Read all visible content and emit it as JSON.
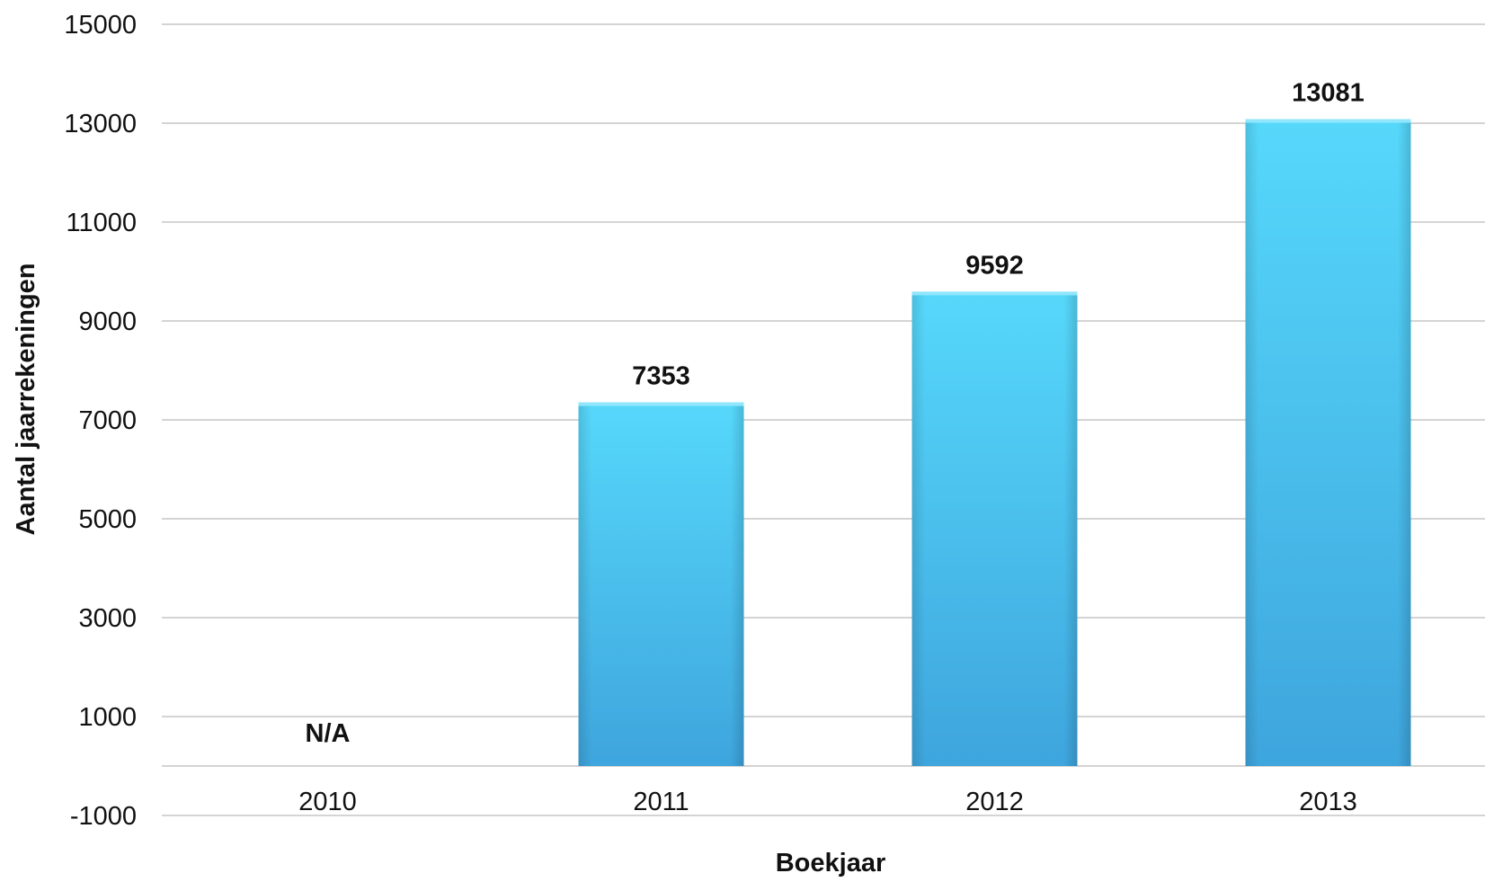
{
  "chart_data": {
    "type": "bar",
    "title": "",
    "xlabel": "Boekjaar",
    "ylabel": "Aantal jaarrekeningen",
    "categories": [
      "2010",
      "2011",
      "2012",
      "2013"
    ],
    "values": [
      null,
      7353,
      9592,
      13081
    ],
    "value_labels": [
      "N/A",
      "7353",
      "9592",
      "13081"
    ],
    "ylim": [
      -1000,
      15000
    ],
    "yticks": [
      -1000,
      1000,
      3000,
      5000,
      7000,
      9000,
      11000,
      13000,
      15000
    ],
    "grid": true,
    "legend": "none",
    "bar_color_top": "#56d8fb",
    "bar_color_bottom": "#3ea5dd"
  }
}
